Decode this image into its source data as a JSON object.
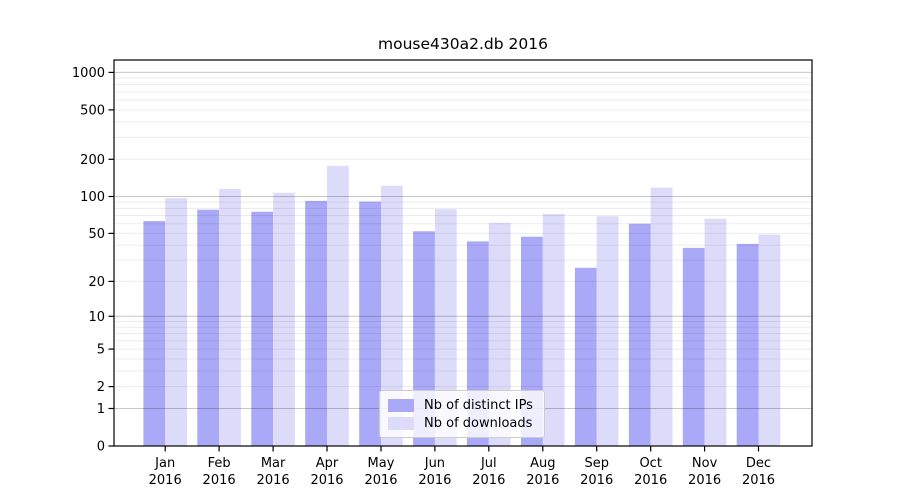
{
  "chart_data": {
    "type": "bar",
    "title": "mouse430a2.db 2016",
    "categories": [
      "Jan 2016",
      "Feb 2016",
      "Mar 2016",
      "Apr 2016",
      "May 2016",
      "Jun 2016",
      "Jul 2016",
      "Aug 2016",
      "Sep 2016",
      "Oct 2016",
      "Nov 2016",
      "Dec 2016"
    ],
    "series": [
      {
        "name": "Nb of distinct IPs",
        "color": "#a9a9f8",
        "values": [
          63,
          78,
          75,
          92,
          91,
          52,
          43,
          47,
          26,
          60,
          38,
          41
        ]
      },
      {
        "name": "Nb of downloads",
        "color": "#dcdcfa",
        "values": [
          97,
          115,
          107,
          177,
          122,
          79,
          61,
          72,
          69,
          118,
          66,
          49
        ]
      }
    ],
    "yticks": [
      1000,
      500,
      200,
      100,
      50,
      20,
      10,
      5,
      2,
      1,
      0
    ],
    "yscale": "log1p",
    "ylim": [
      0,
      1260
    ],
    "xlabel": "",
    "ylabel": "",
    "grid": true,
    "legend_position": "lower center"
  }
}
